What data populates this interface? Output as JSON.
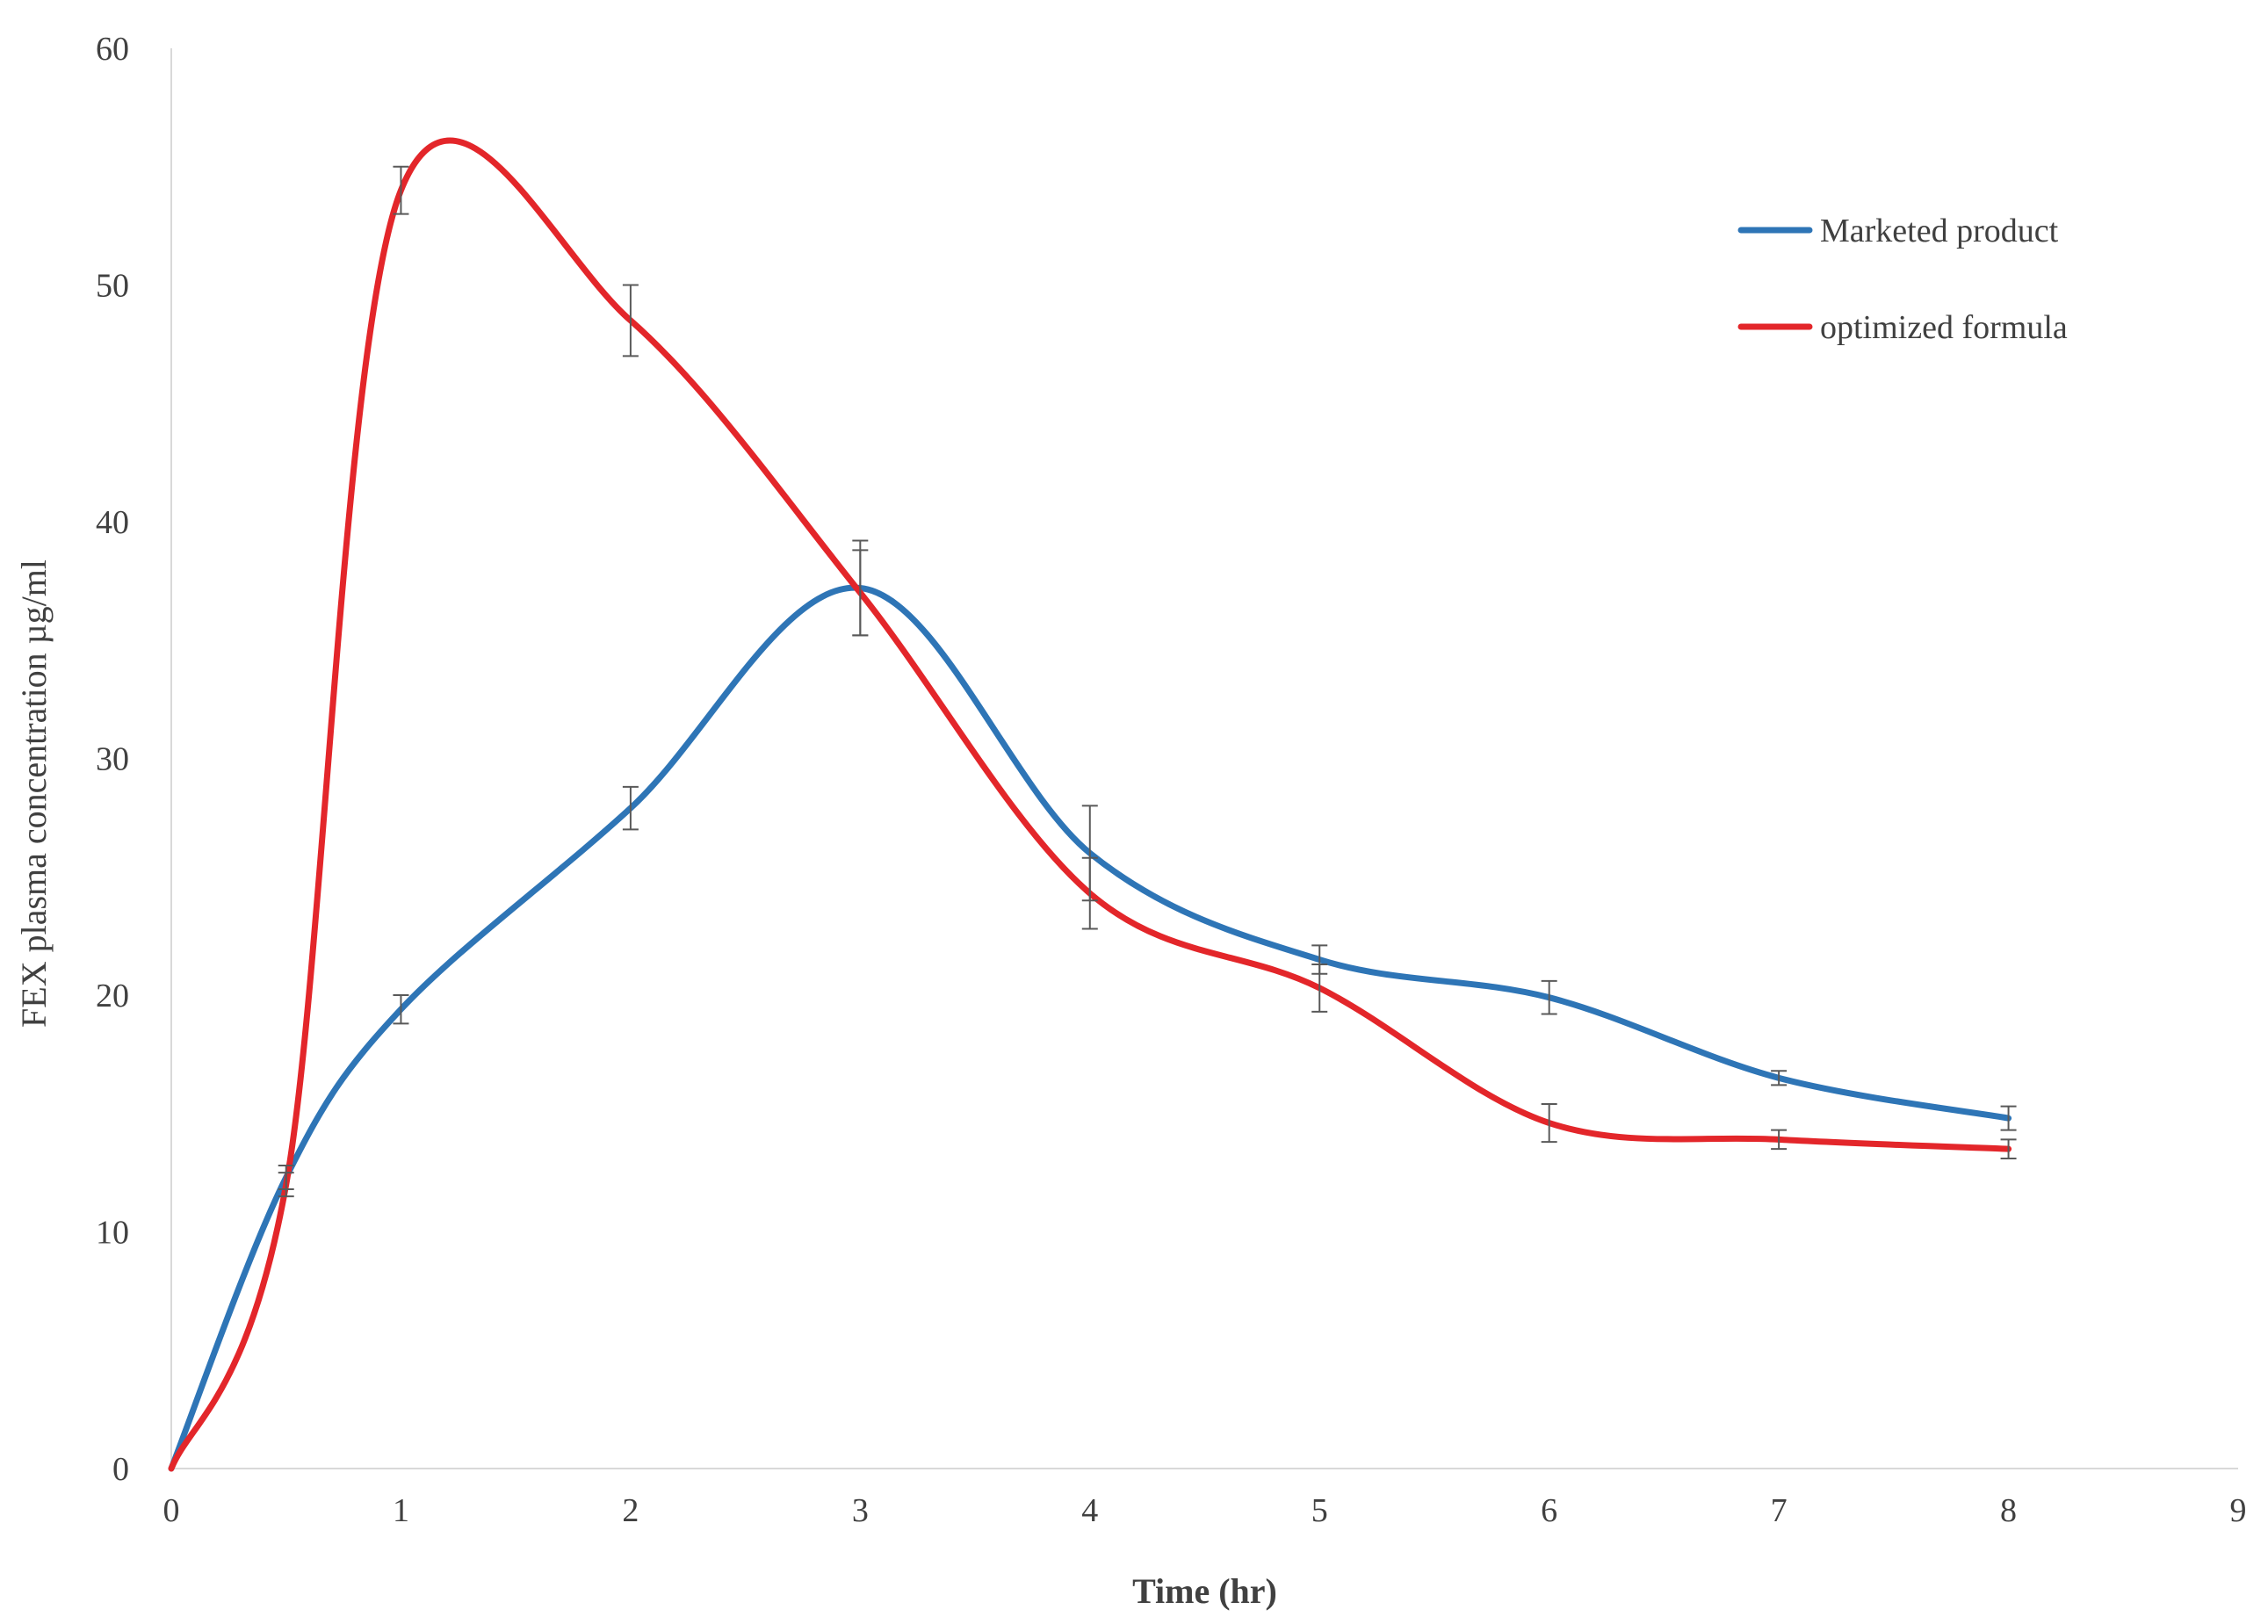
{
  "chart_data": {
    "type": "line",
    "title": "",
    "xlabel": "Time (hr)",
    "ylabel": "FEX plasma concentration µg/ml",
    "xlim": [
      0,
      9
    ],
    "ylim": [
      0,
      60
    ],
    "xticks": [
      0,
      1,
      2,
      3,
      4,
      5,
      6,
      7,
      8,
      9
    ],
    "yticks": [
      0,
      10,
      20,
      30,
      40,
      50,
      60
    ],
    "xtick_labels": [
      "0",
      "1",
      "2",
      "3",
      "4",
      "5",
      "6",
      "7",
      "8",
      "9"
    ],
    "ytick_labels": [
      "0",
      "10",
      "20",
      "30",
      "40",
      "50",
      "60"
    ],
    "grid": false,
    "legend_position": "top-right",
    "series": [
      {
        "name": "Marketed product",
        "color": "#2E75B6",
        "x": [
          0,
          0.5,
          1,
          2,
          3,
          4,
          5,
          6,
          7,
          8
        ],
        "y": [
          0,
          12.3,
          19.4,
          27.9,
          37.2,
          26.0,
          21.5,
          19.9,
          16.5,
          14.8
        ],
        "error": [
          0,
          0.5,
          0.6,
          0.9,
          2.0,
          2.0,
          0.6,
          0.7,
          0.3,
          0.5
        ]
      },
      {
        "name": "optimized formula",
        "color": "#E3262A",
        "x": [
          0,
          0.5,
          1,
          2,
          3,
          4,
          5,
          6,
          7,
          8
        ],
        "y": [
          0,
          12.0,
          54.0,
          48.5,
          37.0,
          24.3,
          20.3,
          14.6,
          13.9,
          13.5
        ],
        "error": [
          0,
          0.5,
          1.0,
          1.5,
          1.8,
          1.5,
          1.0,
          0.8,
          0.4,
          0.4
        ]
      }
    ]
  }
}
